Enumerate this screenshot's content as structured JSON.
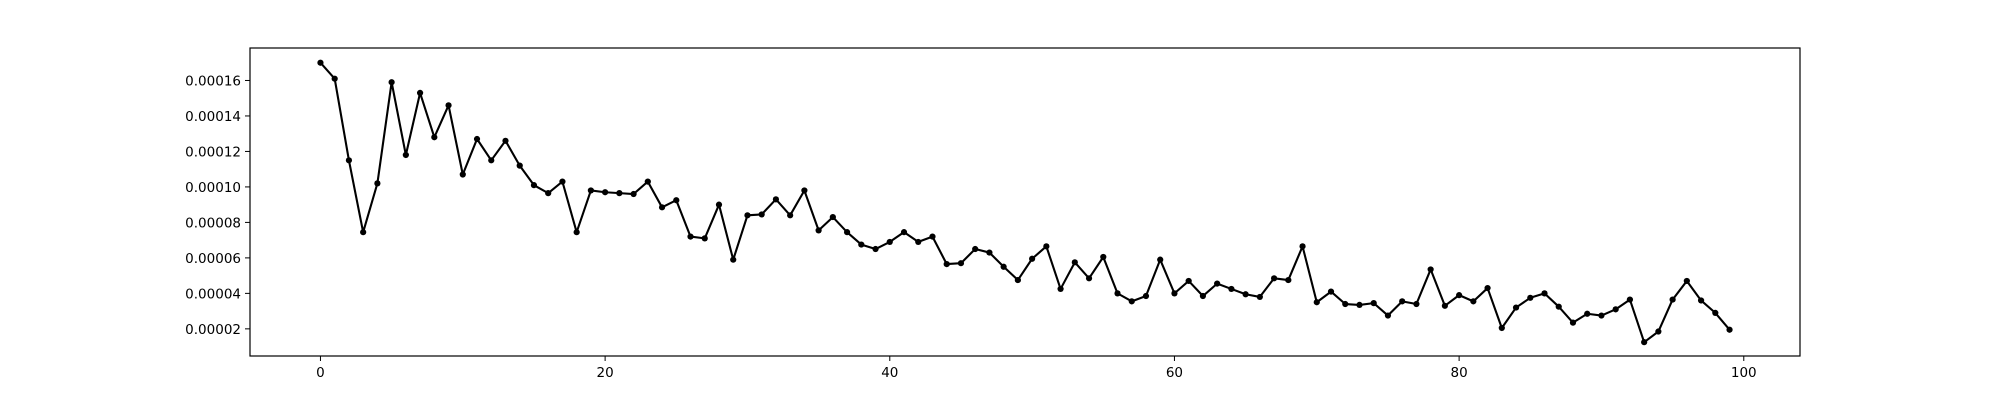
{
  "chart_data": {
    "type": "line",
    "title": "",
    "xlabel": "",
    "ylabel": "",
    "xlim": [
      -4.95,
      103.95
    ],
    "ylim": [
      4.7e-06,
      0.0001783
    ],
    "xticks": [
      0,
      20,
      40,
      60,
      80,
      100
    ],
    "xtick_labels": [
      "0",
      "20",
      "40",
      "60",
      "80",
      "100"
    ],
    "yticks": [
      2e-05,
      4e-05,
      6e-05,
      8e-05,
      0.0001,
      0.00012,
      0.00014,
      0.00016
    ],
    "ytick_labels": [
      "0.00002",
      "0.00004",
      "0.00006",
      "0.00008",
      "0.00010",
      "0.00012",
      "0.00014",
      "0.00016"
    ],
    "grid": false,
    "series": [
      {
        "name": "series",
        "color": "#000000",
        "marker": "circle",
        "x": [
          0,
          1,
          2,
          3,
          4,
          5,
          6,
          7,
          8,
          9,
          10,
          11,
          12,
          13,
          14,
          15,
          16,
          17,
          18,
          19,
          20,
          21,
          22,
          23,
          24,
          25,
          26,
          27,
          28,
          29,
          30,
          31,
          32,
          33,
          34,
          35,
          36,
          37,
          38,
          39,
          40,
          41,
          42,
          43,
          44,
          45,
          46,
          47,
          48,
          49,
          50,
          51,
          52,
          53,
          54,
          55,
          56,
          57,
          58,
          59,
          60,
          61,
          62,
          63,
          64,
          65,
          66,
          67,
          68,
          69,
          70,
          71,
          72,
          73,
          74,
          75,
          76,
          77,
          78,
          79,
          80,
          81,
          82,
          83,
          84,
          85,
          86,
          87,
          88,
          89,
          90,
          91,
          92,
          93,
          94,
          95,
          96,
          97,
          98,
          99
        ],
        "values": [
          0.00017,
          0.000161,
          0.000115,
          7.45e-05,
          0.000102,
          0.000159,
          0.000118,
          0.000153,
          0.000128,
          0.000146,
          0.000107,
          0.000127,
          0.000115,
          0.000126,
          0.000112,
          0.000101,
          9.65e-05,
          0.000103,
          7.45e-05,
          9.8e-05,
          9.7e-05,
          9.65e-05,
          9.6e-05,
          0.000103,
          8.85e-05,
          9.25e-05,
          7.2e-05,
          7.1e-05,
          9e-05,
          5.9e-05,
          8.4e-05,
          8.45e-05,
          9.3e-05,
          8.4e-05,
          9.8e-05,
          7.55e-05,
          8.3e-05,
          7.45e-05,
          6.75e-05,
          6.5e-05,
          6.9e-05,
          7.45e-05,
          6.9e-05,
          7.2e-05,
          5.65e-05,
          5.7e-05,
          6.5e-05,
          6.3e-05,
          5.5e-05,
          4.75e-05,
          5.95e-05,
          6.65e-05,
          4.25e-05,
          5.75e-05,
          4.85e-05,
          6.05e-05,
          4e-05,
          3.55e-05,
          3.85e-05,
          5.9e-05,
          4e-05,
          4.7e-05,
          3.85e-05,
          4.55e-05,
          4.25e-05,
          3.95e-05,
          3.8e-05,
          4.85e-05,
          4.75e-05,
          6.65e-05,
          3.5e-05,
          4.1e-05,
          3.4e-05,
          3.35e-05,
          3.45e-05,
          2.75e-05,
          3.55e-05,
          3.4e-05,
          5.35e-05,
          3.3e-05,
          3.9e-05,
          3.55e-05,
          4.3e-05,
          2.05e-05,
          3.2e-05,
          3.75e-05,
          4e-05,
          3.25e-05,
          2.35e-05,
          2.85e-05,
          2.75e-05,
          3.1e-05,
          3.65e-05,
          1.25e-05,
          1.85e-05,
          3.65e-05,
          4.7e-05,
          3.6e-05,
          2.9e-05,
          1.95e-05
        ]
      }
    ]
  }
}
